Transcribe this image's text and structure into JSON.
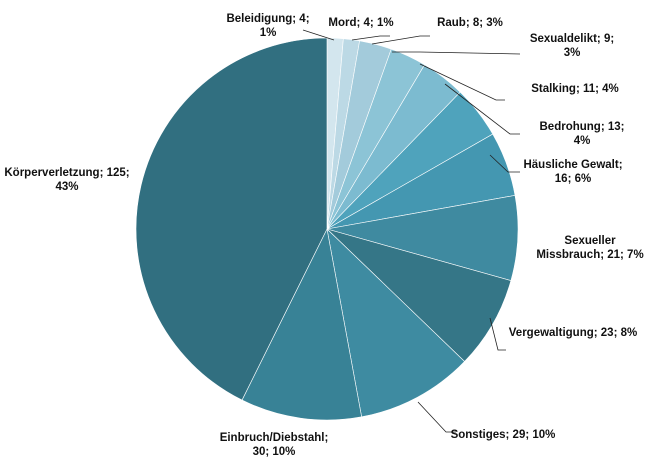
{
  "chart_data": {
    "type": "pie",
    "title": "",
    "start": "top",
    "direction": "clockwise",
    "legend": "none",
    "slices": [
      {
        "category": "Beleidigung",
        "value": 4,
        "percent": "1%",
        "label": "Beleidigung; 4; 1%",
        "color": "#d3e6ee"
      },
      {
        "category": "Mord",
        "value": 4,
        "percent": "1%",
        "label": "Mord; 4; 1%",
        "color": "#bcd9e5"
      },
      {
        "category": "Raub",
        "value": 8,
        "percent": "3%",
        "label": "Raub; 8; 3%",
        "color": "#a3cbdb"
      },
      {
        "category": "Sexualdelikt",
        "value": 9,
        "percent": "3%",
        "label": "Sexualdelikt; 9; 3%",
        "color": "#8cc4d6"
      },
      {
        "category": "Stalking",
        "value": 11,
        "percent": "4%",
        "label": "Stalking; 11; 4%",
        "color": "#7cbbd0"
      },
      {
        "category": "Bedrohung",
        "value": 13,
        "percent": "4%",
        "label": "Bedrohung; 13; 4%",
        "color": "#4fa3bc"
      },
      {
        "category": "Häusliche Gewalt",
        "value": 16,
        "percent": "6%",
        "label": "Häusliche Gewalt; 16; 6%",
        "color": "#4497b1"
      },
      {
        "category": "Sexueller Missbrauch",
        "value": 21,
        "percent": "7%",
        "label": "Sexueller Missbrauch; 21; 7%",
        "color": "#3f8aa0"
      },
      {
        "category": "Vergewaltigung",
        "value": 23,
        "percent": "8%",
        "label": "Vergewaltigung; 23; 8%",
        "color": "#357687"
      },
      {
        "category": "Sonstiges",
        "value": 29,
        "percent": "10%",
        "label": "Sonstiges; 29; 10%",
        "color": "#3e8ba1"
      },
      {
        "category": "Einbruch/Diebstahl",
        "value": 30,
        "percent": "10%",
        "label": "Einbruch/Diebstahl; 30; 10%",
        "color": "#388296"
      },
      {
        "category": "Körperverletzung",
        "value": 125,
        "percent": "43%",
        "label": "Körperverletzung; 125; 43%",
        "color": "#316f80"
      }
    ]
  }
}
